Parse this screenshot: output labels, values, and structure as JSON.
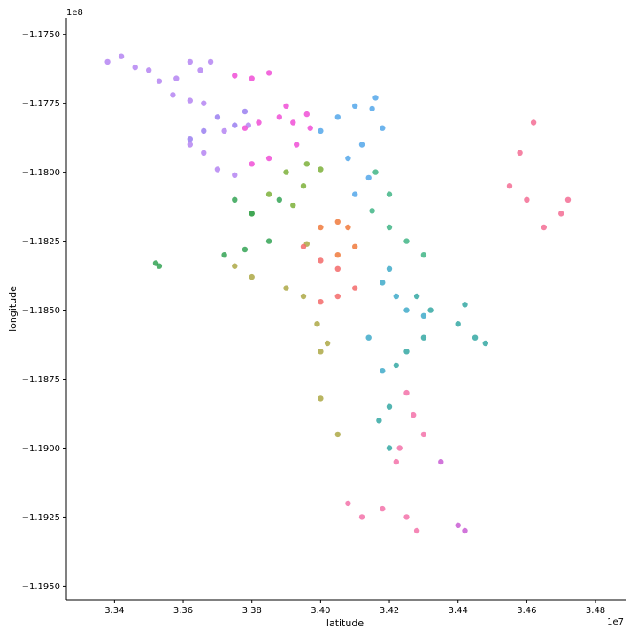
{
  "chart_data": {
    "type": "scatter",
    "title": "",
    "xlabel": "latitude",
    "ylabel": "longitude",
    "x_offset_text": "1e7",
    "y_offset_text": "1e8",
    "xlim": [
      33.26,
      34.89
    ],
    "ylim": [
      -119.55,
      -117.44
    ],
    "xticks": [
      33.4,
      33.6,
      33.8,
      34.0,
      34.2,
      34.4,
      34.6,
      34.8
    ],
    "xtick_labels": [
      "3.34",
      "3.36",
      "3.38",
      "3.40",
      "3.42",
      "3.44",
      "3.46",
      "3.48"
    ],
    "yticks": [
      -117.5,
      -117.75,
      -118.0,
      -118.25,
      -118.5,
      -118.75,
      -119.0,
      -119.25,
      -119.5
    ],
    "ytick_labels": [
      "−1.1750",
      "−1.1775",
      "−1.1800",
      "−1.1825",
      "−1.1850",
      "−1.1875",
      "−1.1900",
      "−1.1925",
      "−1.1950"
    ],
    "grid": false,
    "legend": "none",
    "spines": "left-bottom",
    "series": [
      {
        "color": "#b585f2",
        "alpha": 0.85,
        "points": [
          [
            33.38,
            -117.6
          ],
          [
            33.42,
            -117.58
          ],
          [
            33.46,
            -117.62
          ],
          [
            33.5,
            -117.63
          ],
          [
            33.53,
            -117.67
          ],
          [
            33.58,
            -117.66
          ],
          [
            33.62,
            -117.6
          ],
          [
            33.65,
            -117.63
          ],
          [
            33.68,
            -117.6
          ],
          [
            33.57,
            -117.72
          ],
          [
            33.62,
            -117.74
          ],
          [
            33.66,
            -117.75
          ],
          [
            33.62,
            -117.9
          ],
          [
            33.66,
            -117.93
          ],
          [
            33.7,
            -117.99
          ],
          [
            33.75,
            -118.01
          ],
          [
            33.72,
            -117.85
          ],
          [
            33.79,
            -117.83
          ]
        ]
      },
      {
        "color": "#9a7ff0",
        "alpha": 0.85,
        "points": [
          [
            33.7,
            -117.8
          ],
          [
            33.75,
            -117.83
          ],
          [
            33.78,
            -117.78
          ],
          [
            33.66,
            -117.85
          ],
          [
            33.62,
            -117.88
          ]
        ]
      },
      {
        "color": "#f04fd6",
        "alpha": 0.85,
        "points": [
          [
            33.75,
            -117.65
          ],
          [
            33.8,
            -117.66
          ],
          [
            33.85,
            -117.64
          ],
          [
            33.78,
            -117.84
          ],
          [
            33.82,
            -117.82
          ],
          [
            33.88,
            -117.8
          ],
          [
            33.92,
            -117.82
          ],
          [
            33.96,
            -117.79
          ],
          [
            33.97,
            -117.84
          ],
          [
            33.93,
            -117.9
          ],
          [
            33.85,
            -117.95
          ],
          [
            33.8,
            -117.97
          ],
          [
            33.9,
            -117.76
          ]
        ]
      },
      {
        "color": "#48a1e8",
        "alpha": 0.8,
        "points": [
          [
            34.0,
            -117.85
          ],
          [
            34.05,
            -117.8
          ],
          [
            34.1,
            -117.76
          ],
          [
            34.15,
            -117.77
          ],
          [
            34.18,
            -117.84
          ],
          [
            34.12,
            -117.9
          ],
          [
            34.08,
            -117.95
          ],
          [
            34.14,
            -118.02
          ],
          [
            34.1,
            -118.08
          ],
          [
            34.16,
            -117.73
          ]
        ]
      },
      {
        "color": "#7db03a",
        "alpha": 0.85,
        "points": [
          [
            33.9,
            -118.0
          ],
          [
            33.96,
            -117.97
          ],
          [
            34.0,
            -117.99
          ],
          [
            33.95,
            -118.05
          ],
          [
            33.92,
            -118.12
          ],
          [
            33.85,
            -118.08
          ],
          [
            33.8,
            -118.15
          ]
        ]
      },
      {
        "color": "#34a355",
        "alpha": 0.85,
        "points": [
          [
            33.75,
            -118.1
          ],
          [
            33.8,
            -118.15
          ],
          [
            33.85,
            -118.25
          ],
          [
            33.78,
            -118.28
          ],
          [
            33.72,
            -118.3
          ],
          [
            33.88,
            -118.1
          ],
          [
            33.52,
            -118.33
          ],
          [
            33.53,
            -118.34
          ]
        ]
      },
      {
        "color": "#34b07e",
        "alpha": 0.8,
        "points": [
          [
            34.16,
            -118.0
          ],
          [
            34.2,
            -118.08
          ],
          [
            34.15,
            -118.14
          ],
          [
            34.2,
            -118.2
          ],
          [
            34.25,
            -118.25
          ],
          [
            34.3,
            -118.3
          ]
        ]
      },
      {
        "color": "#a7a23a",
        "alpha": 0.8,
        "points": [
          [
            33.75,
            -118.34
          ],
          [
            33.8,
            -118.38
          ],
          [
            33.9,
            -118.42
          ],
          [
            33.95,
            -118.45
          ],
          [
            33.99,
            -118.55
          ],
          [
            34.02,
            -118.62
          ],
          [
            34.0,
            -118.65
          ],
          [
            34.0,
            -118.82
          ],
          [
            34.05,
            -118.95
          ],
          [
            33.96,
            -118.26
          ]
        ]
      },
      {
        "color": "#f07a3c",
        "alpha": 0.85,
        "points": [
          [
            34.0,
            -118.2
          ],
          [
            34.05,
            -118.18
          ],
          [
            34.08,
            -118.2
          ],
          [
            34.1,
            -118.27
          ],
          [
            34.05,
            -118.3
          ]
        ]
      },
      {
        "color": "#f36a6a",
        "alpha": 0.85,
        "points": [
          [
            33.95,
            -118.27
          ],
          [
            34.0,
            -118.32
          ],
          [
            34.05,
            -118.35
          ],
          [
            34.1,
            -118.42
          ],
          [
            34.05,
            -118.45
          ],
          [
            34.0,
            -118.47
          ]
        ]
      },
      {
        "color": "#33a5c6",
        "alpha": 0.8,
        "points": [
          [
            34.18,
            -118.4
          ],
          [
            34.22,
            -118.45
          ],
          [
            34.25,
            -118.5
          ],
          [
            34.3,
            -118.52
          ],
          [
            34.2,
            -118.35
          ],
          [
            34.14,
            -118.6
          ],
          [
            34.18,
            -118.72
          ]
        ]
      },
      {
        "color": "#28a39e",
        "alpha": 0.8,
        "points": [
          [
            34.28,
            -118.45
          ],
          [
            34.32,
            -118.5
          ],
          [
            34.3,
            -118.6
          ],
          [
            34.25,
            -118.65
          ],
          [
            34.22,
            -118.7
          ],
          [
            34.2,
            -118.85
          ],
          [
            34.17,
            -118.9
          ],
          [
            34.2,
            -119.0
          ],
          [
            34.4,
            -118.55
          ],
          [
            34.45,
            -118.6
          ],
          [
            34.48,
            -118.62
          ],
          [
            34.42,
            -118.48
          ]
        ]
      },
      {
        "color": "#f25f9e",
        "alpha": 0.75,
        "points": [
          [
            34.25,
            -118.8
          ],
          [
            34.27,
            -118.88
          ],
          [
            34.3,
            -118.95
          ],
          [
            34.23,
            -119.0
          ],
          [
            34.22,
            -119.05
          ],
          [
            34.08,
            -119.2
          ],
          [
            34.12,
            -119.25
          ],
          [
            34.18,
            -119.22
          ],
          [
            34.25,
            -119.25
          ],
          [
            34.28,
            -119.3
          ]
        ]
      },
      {
        "color": "#f25a85",
        "alpha": 0.75,
        "points": [
          [
            34.55,
            -118.05
          ],
          [
            34.6,
            -118.1
          ],
          [
            34.65,
            -118.2
          ],
          [
            34.7,
            -118.15
          ],
          [
            34.72,
            -118.1
          ],
          [
            34.62,
            -117.82
          ],
          [
            34.58,
            -117.93
          ]
        ]
      },
      {
        "color": "#c95dd4",
        "alpha": 0.85,
        "points": [
          [
            34.35,
            -119.05
          ],
          [
            34.4,
            -119.28
          ],
          [
            34.42,
            -119.3
          ]
        ]
      }
    ]
  }
}
